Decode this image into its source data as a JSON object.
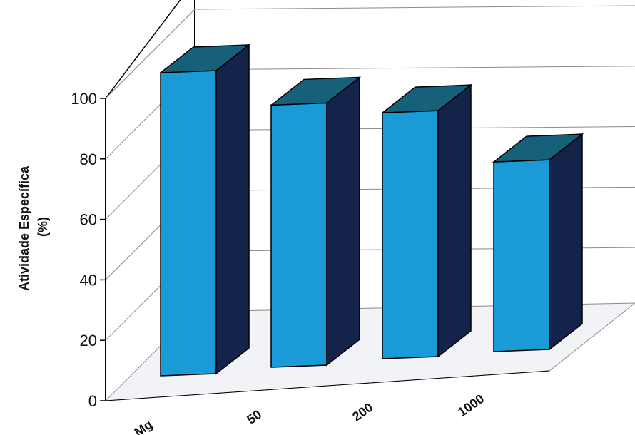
{
  "chart_data": {
    "type": "bar",
    "categories": [
      "Mg",
      "50",
      "200",
      "1000"
    ],
    "values": [
      100,
      89,
      86,
      68
    ],
    "title": "",
    "xlabel": "",
    "ylabel": "Atividade Específica (%)",
    "ylabel_lines": [
      "Atividade Específica",
      "(%)"
    ],
    "ylim": [
      0,
      100
    ],
    "yticks": [
      "0",
      "20",
      "40",
      "60",
      "80",
      "100"
    ],
    "grid": true,
    "legend": "none",
    "colors": {
      "bar_front": "#1a9ad6",
      "bar_side": "#14234a",
      "bar_top": "#16607a",
      "floor": "#f1f3f7",
      "gridline": "#8a8a8a",
      "axis": "#000000"
    }
  }
}
